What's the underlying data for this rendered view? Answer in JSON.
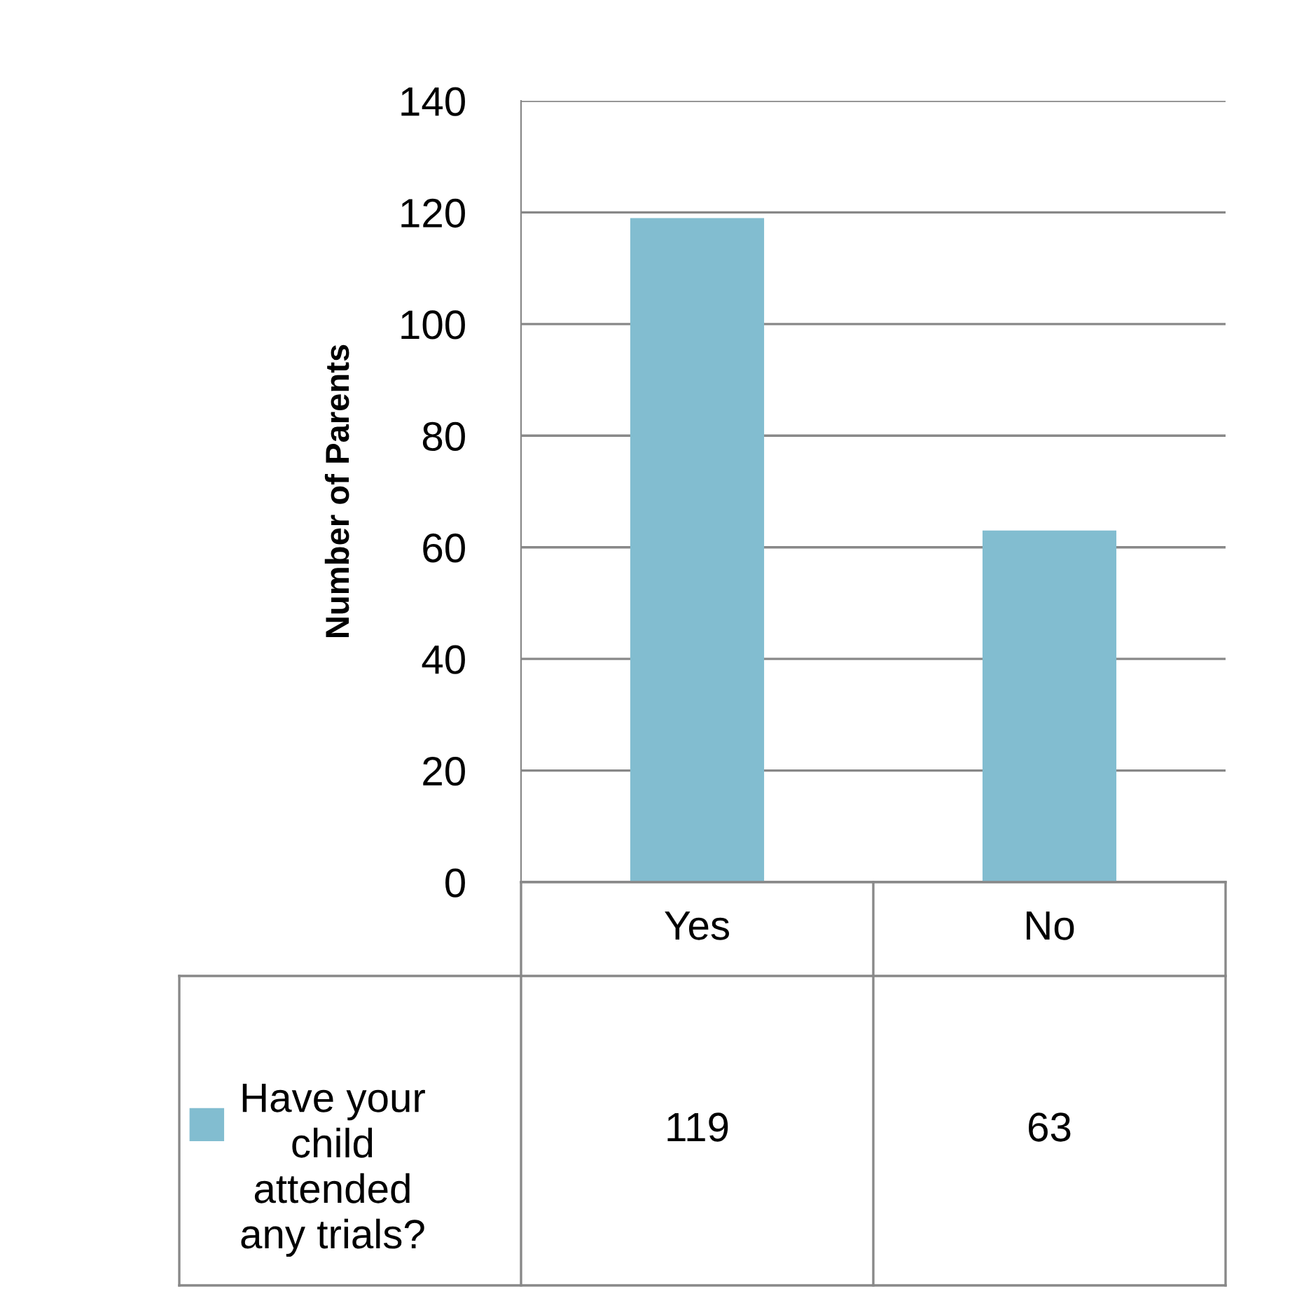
{
  "chart_data": {
    "type": "bar",
    "ylabel": "Number of Parents",
    "categories": [
      "Yes",
      "No"
    ],
    "series": [
      {
        "name": "Have your child attended any trials?",
        "color": "#82bdd0",
        "values": [
          119,
          63
        ]
      }
    ],
    "ylim": [
      0,
      140
    ],
    "yticks": [
      0,
      20,
      40,
      60,
      80,
      100,
      120,
      140
    ],
    "grid": "y",
    "legend": "bottom",
    "data_labels": true
  }
}
